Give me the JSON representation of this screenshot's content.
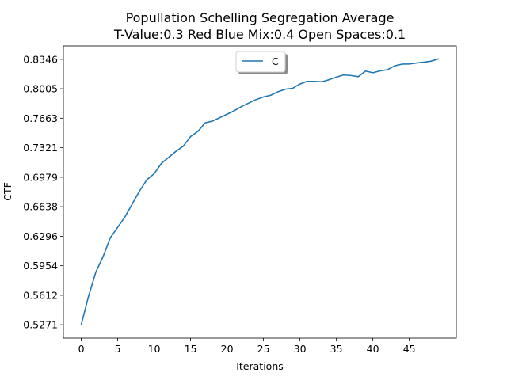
{
  "chart_data": {
    "type": "line",
    "title_line1": "Popullation Schelling Segregation Average",
    "title_line2": "T-Value:0.3 Red Blue Mix:0.4 Open Spaces:0.1",
    "xlabel": "Iterations",
    "ylabel": "CTF",
    "xlim": [
      -2.45,
      51.45
    ],
    "ylim": [
      0.5116,
      0.8501
    ],
    "xticks": [
      0,
      5,
      10,
      15,
      20,
      25,
      30,
      35,
      40,
      45
    ],
    "xtick_labels": [
      "0",
      "5",
      "10",
      "15",
      "20",
      "25",
      "30",
      "35",
      "40",
      "45"
    ],
    "yticks": [
      0.5271,
      0.5612,
      0.5954,
      0.6296,
      0.6638,
      0.6979,
      0.7321,
      0.7663,
      0.8005,
      0.8346
    ],
    "ytick_labels": [
      "0.5271",
      "0.5612",
      "0.5954",
      "0.6296",
      "0.6638",
      "0.6979",
      "0.7321",
      "0.7663",
      "0.8005",
      "0.8346"
    ],
    "legend_placement": "top-center",
    "grid": false,
    "series": [
      {
        "name": "C",
        "color": "#1f77b4",
        "x": [
          0,
          1,
          2,
          3,
          4,
          5,
          6,
          7,
          8,
          9,
          10,
          11,
          12,
          13,
          14,
          15,
          16,
          17,
          18,
          19,
          20,
          21,
          22,
          23,
          24,
          25,
          26,
          27,
          28,
          29,
          30,
          31,
          32,
          33,
          34,
          35,
          36,
          37,
          38,
          39,
          40,
          41,
          42,
          43,
          44,
          45,
          46,
          47,
          48,
          49
        ],
        "y": [
          0.5271,
          0.56,
          0.588,
          0.606,
          0.628,
          0.64,
          0.652,
          0.667,
          0.682,
          0.695,
          0.702,
          0.714,
          0.721,
          0.728,
          0.734,
          0.745,
          0.751,
          0.761,
          0.763,
          0.767,
          0.771,
          0.775,
          0.78,
          0.784,
          0.788,
          0.791,
          0.793,
          0.797,
          0.8,
          0.801,
          0.806,
          0.809,
          0.809,
          0.8085,
          0.811,
          0.814,
          0.8165,
          0.8158,
          0.8145,
          0.821,
          0.819,
          0.8212,
          0.8225,
          0.827,
          0.829,
          0.8292,
          0.8303,
          0.8312,
          0.8325,
          0.8351
        ]
      }
    ]
  }
}
